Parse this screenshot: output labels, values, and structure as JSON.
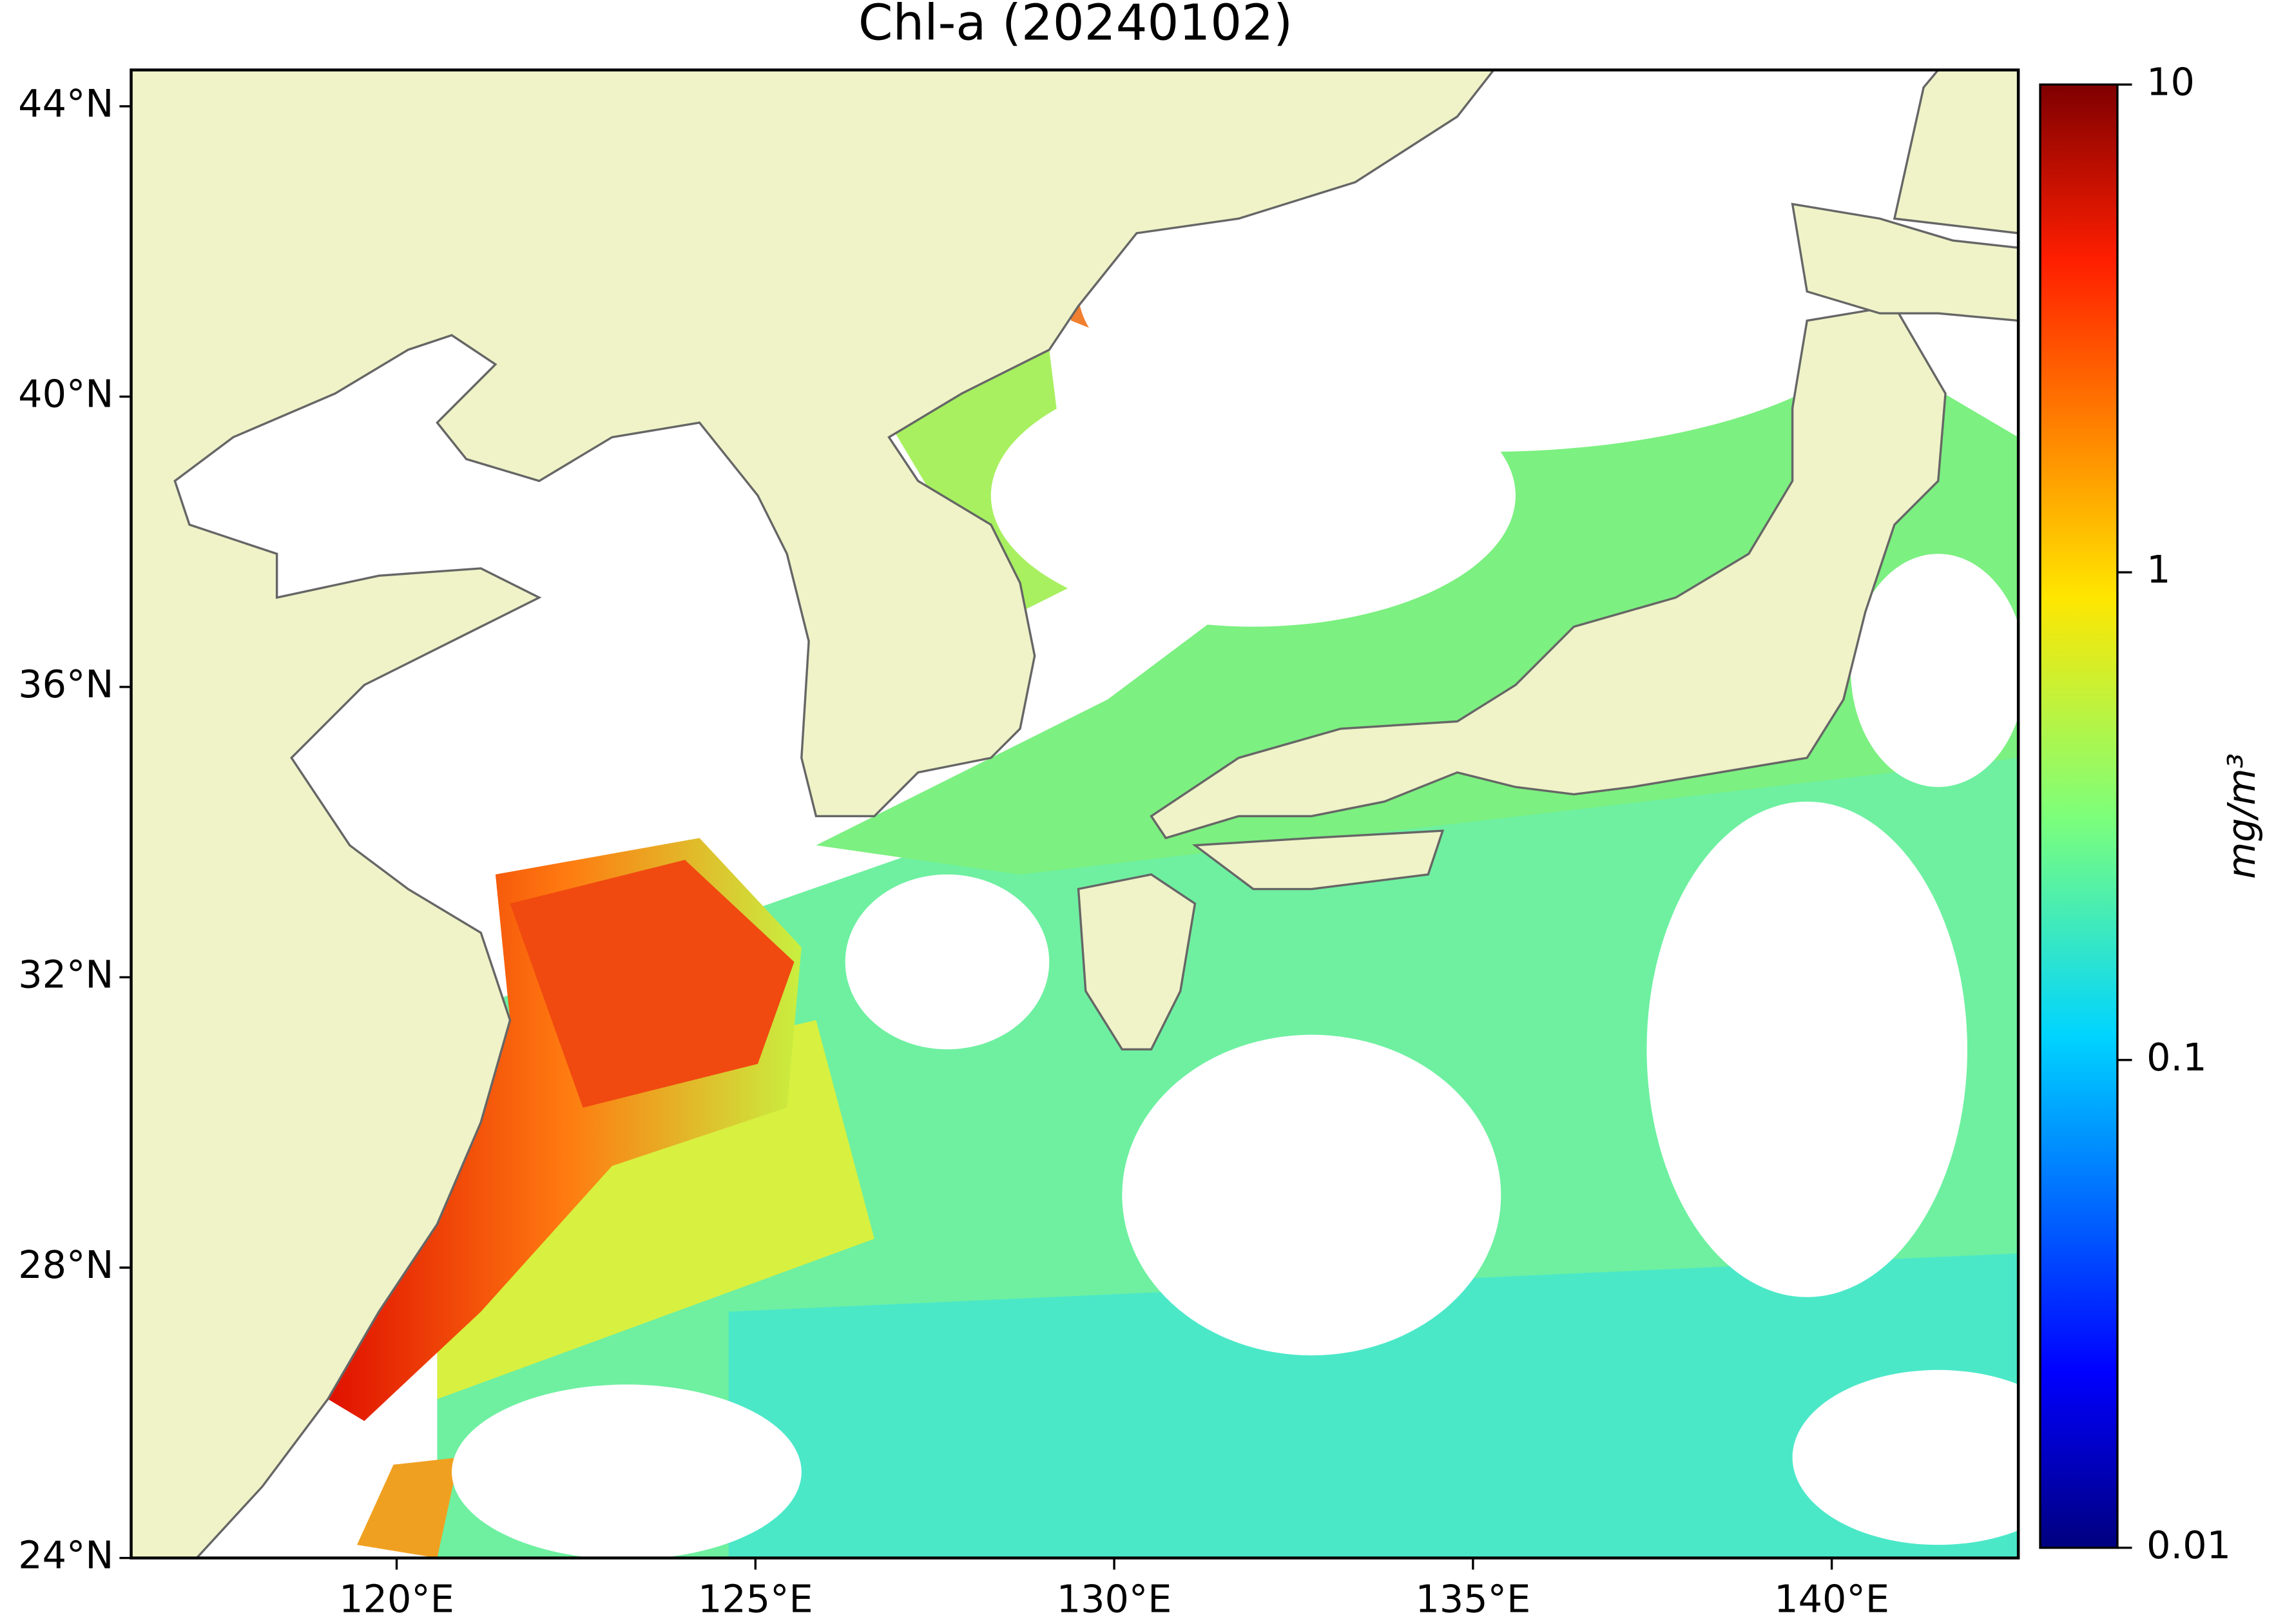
{
  "chart_data": {
    "type": "map",
    "title": "Chl-a (20240102)",
    "xlim": [
      116.3,
      142.6
    ],
    "ylim": [
      24,
      44.5
    ],
    "xticks": [
      {
        "value": 120,
        "label": "120°E"
      },
      {
        "value": 125,
        "label": "125°E"
      },
      {
        "value": 130,
        "label": "130°E"
      },
      {
        "value": 135,
        "label": "135°E"
      },
      {
        "value": 140,
        "label": "140°E"
      }
    ],
    "yticks": [
      {
        "value": 24,
        "label": "24°N"
      },
      {
        "value": 28,
        "label": "28°N"
      },
      {
        "value": 32,
        "label": "32°N"
      },
      {
        "value": 36,
        "label": "36°N"
      },
      {
        "value": 40,
        "label": "40°N"
      },
      {
        "value": 44,
        "label": "44°N"
      }
    ],
    "colorbar": {
      "label": "mg/m³",
      "scale": "log",
      "lim": [
        0.01,
        10
      ],
      "ticks": [
        0.01,
        0.1,
        1,
        10
      ],
      "colormap": "jet"
    }
  }
}
